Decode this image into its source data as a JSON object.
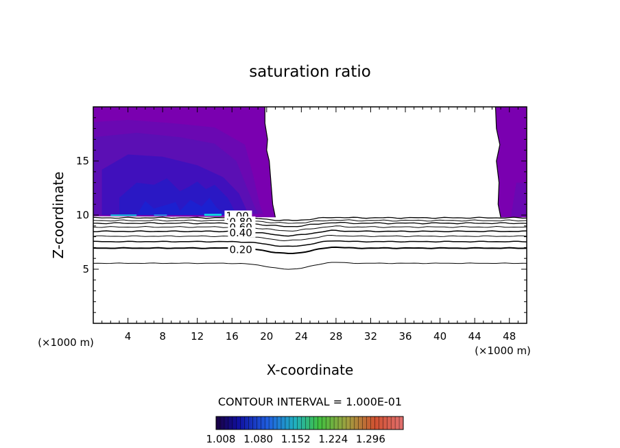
{
  "chart_data": {
    "type": "contour",
    "title": "saturation ratio",
    "xlabel": "X-coordinate",
    "ylabel": "Z-coordinate",
    "x_unit": "(×1000 m)",
    "xlim": [
      0,
      50
    ],
    "ylim": [
      0,
      20
    ],
    "x_ticks": [
      4,
      8,
      12,
      16,
      20,
      24,
      28,
      32,
      36,
      40,
      44,
      48
    ],
    "y_ticks": [
      5,
      10,
      15
    ],
    "contour_interval_label": "CONTOUR INTERVAL = 1.000E-01",
    "contour_labels": [
      "1.00",
      "0.80",
      "0.60",
      "0.40",
      "0.20"
    ],
    "colorbar_ticks": [
      "1.008",
      "1.080",
      "1.152",
      "1.224",
      "1.296"
    ],
    "colorbar_range": [
      1.0,
      1.33
    ],
    "colors": {
      "fill_base": "#7a00b0",
      "fill_mid": "#5b0fb4",
      "fill_deep": "#2a10c8",
      "fill_cyan": "#10d8e0",
      "line": "#000000"
    }
  }
}
